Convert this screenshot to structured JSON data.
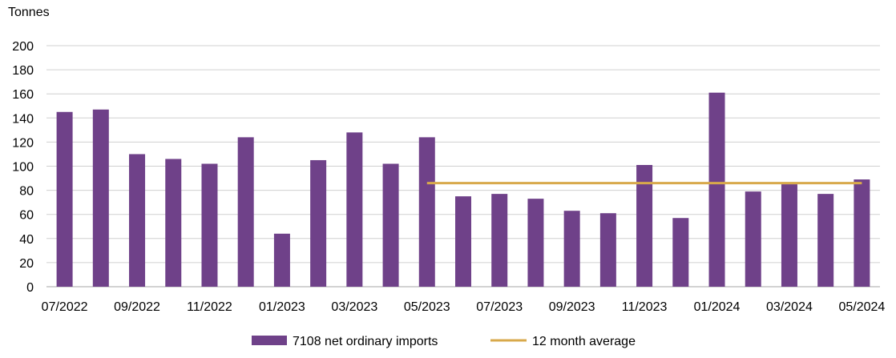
{
  "chart_data": {
    "type": "bar",
    "ylabel": "Tonnes",
    "xlabel": "",
    "ylim": [
      0,
      200
    ],
    "yticks": [
      0,
      20,
      40,
      60,
      80,
      100,
      120,
      140,
      160,
      180,
      200
    ],
    "grid": true,
    "categories": [
      "07/2022",
      "08/2022",
      "09/2022",
      "10/2022",
      "11/2022",
      "12/2022",
      "01/2023",
      "02/2023",
      "03/2023",
      "04/2023",
      "05/2023",
      "06/2023",
      "07/2023",
      "08/2023",
      "09/2023",
      "10/2023",
      "11/2023",
      "12/2023",
      "01/2024",
      "02/2024",
      "03/2024",
      "04/2024",
      "05/2024"
    ],
    "tick_labels": [
      "07/2022",
      "09/2022",
      "11/2022",
      "01/2023",
      "03/2023",
      "05/2023",
      "07/2023",
      "09/2023",
      "11/2023",
      "01/2024",
      "03/2024",
      "05/2024"
    ],
    "series": [
      {
        "name": "7108 net ordinary imports",
        "type": "bar",
        "color": "#6f4189",
        "values": [
          145,
          147,
          110,
          106,
          102,
          124,
          44,
          105,
          128,
          102,
          124,
          75,
          77,
          73,
          63,
          61,
          101,
          57,
          161,
          79,
          85,
          77,
          89
        ]
      },
      {
        "name": "12 month average",
        "type": "line",
        "color": "#d8a94b",
        "start_category": "05/2023",
        "end_category": "05/2024",
        "value": 86
      }
    ],
    "legend_position": "bottom"
  }
}
